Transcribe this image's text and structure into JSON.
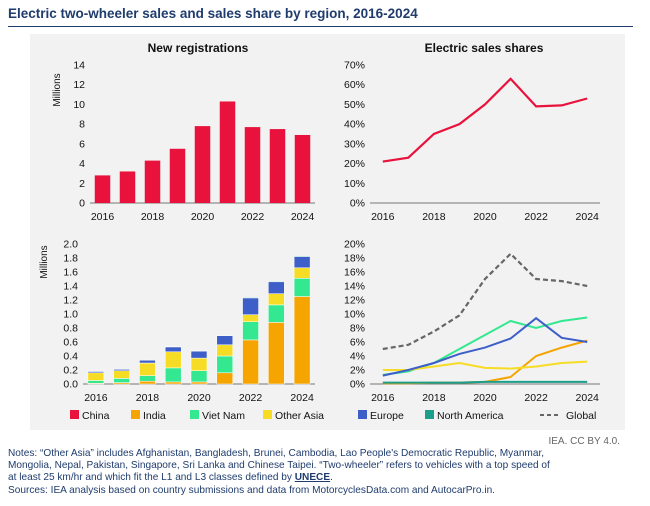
{
  "title": "Electric two-wheeler sales and sales share by region, 2016-2024",
  "colors": {
    "China": "#e8123c",
    "India": "#f5a400",
    "Viet Nam": "#33e890",
    "Other Asia": "#f7dc25",
    "Europe": "#3e5fc8",
    "North America": "#1b9e8a",
    "Global": "#666666"
  },
  "chart_data": [
    {
      "type": "bar",
      "title": "New registrations",
      "ylabel": "Millions",
      "ylim": [
        0,
        14
      ],
      "yticks": [
        0,
        2,
        4,
        6,
        8,
        10,
        12,
        14
      ],
      "x": [
        2016,
        2017,
        2018,
        2019,
        2020,
        2021,
        2022,
        2023,
        2024
      ],
      "xticks": [
        2016,
        2018,
        2020,
        2022,
        2024
      ],
      "series": [
        {
          "name": "China",
          "values": [
            2.8,
            3.2,
            4.3,
            5.5,
            7.8,
            10.3,
            7.7,
            7.5,
            6.9
          ]
        }
      ]
    },
    {
      "type": "line",
      "title": "Electric sales shares",
      "ylim": [
        0,
        70
      ],
      "yticks": [
        "0%",
        "10%",
        "20%",
        "30%",
        "40%",
        "50%",
        "60%",
        "70%"
      ],
      "x": [
        2016,
        2017,
        2018,
        2019,
        2020,
        2021,
        2022,
        2023,
        2024
      ],
      "xticks": [
        2016,
        2018,
        2020,
        2022,
        2024
      ],
      "series": [
        {
          "name": "China",
          "values": [
            21,
            23,
            35,
            40,
            50,
            63,
            49,
            49.5,
            53
          ]
        }
      ]
    },
    {
      "type": "bar",
      "stacked": true,
      "ylabel": "Millions",
      "ylim": [
        0,
        2.0
      ],
      "yticks": [
        "0.0",
        "0.2",
        "0.4",
        "0.6",
        "0.8",
        "1.0",
        "1.2",
        "1.4",
        "1.6",
        "1.8",
        "2.0"
      ],
      "x": [
        2016,
        2017,
        2018,
        2019,
        2020,
        2021,
        2022,
        2023,
        2024
      ],
      "xticks": [
        2016,
        2018,
        2020,
        2022,
        2024
      ],
      "series": [
        {
          "name": "India",
          "values": [
            0.01,
            0.02,
            0.04,
            0.03,
            0.03,
            0.16,
            0.63,
            0.88,
            1.25
          ]
        },
        {
          "name": "Viet Nam",
          "values": [
            0.04,
            0.06,
            0.08,
            0.2,
            0.16,
            0.24,
            0.26,
            0.25,
            0.26
          ]
        },
        {
          "name": "Other Asia",
          "values": [
            0.11,
            0.11,
            0.18,
            0.23,
            0.18,
            0.16,
            0.1,
            0.16,
            0.15
          ]
        },
        {
          "name": "Europe",
          "values": [
            0.02,
            0.02,
            0.04,
            0.07,
            0.1,
            0.13,
            0.24,
            0.17,
            0.16
          ]
        },
        {
          "name": "North America",
          "values": [
            0.005,
            0.005,
            0.005,
            0.005,
            0.005,
            0.005,
            0.01,
            0.01,
            0.01
          ]
        }
      ]
    },
    {
      "type": "line",
      "ylim": [
        0,
        20
      ],
      "yticks": [
        "0%",
        "2%",
        "4%",
        "6%",
        "8%",
        "10%",
        "12%",
        "14%",
        "16%",
        "18%",
        "20%"
      ],
      "x": [
        2016,
        2017,
        2018,
        2019,
        2020,
        2021,
        2022,
        2023,
        2024
      ],
      "xticks": [
        2016,
        2018,
        2020,
        2022,
        2024
      ],
      "series": [
        {
          "name": "India",
          "values": [
            0.1,
            0.1,
            0.2,
            0.2,
            0.3,
            1.0,
            4.0,
            5.2,
            6.2
          ]
        },
        {
          "name": "Viet Nam",
          "values": [
            1.3,
            1.8,
            3.0,
            5.0,
            7.0,
            9.0,
            8.0,
            9.0,
            9.5
          ]
        },
        {
          "name": "Other Asia",
          "values": [
            2.0,
            2.0,
            2.5,
            3.0,
            2.3,
            2.2,
            2.5,
            3.0,
            3.2
          ]
        },
        {
          "name": "Europe",
          "values": [
            1.2,
            2.0,
            3.0,
            4.3,
            5.2,
            6.5,
            9.4,
            6.6,
            6.0
          ]
        },
        {
          "name": "North America",
          "values": [
            0.2,
            0.2,
            0.2,
            0.2,
            0.3,
            0.3,
            0.3,
            0.3,
            0.3
          ]
        },
        {
          "name": "Global",
          "values": [
            5.0,
            5.6,
            7.5,
            9.8,
            15.0,
            18.6,
            15.0,
            14.7,
            14.0
          ],
          "dashed": true
        }
      ]
    }
  ],
  "legend": [
    "China",
    "India",
    "Viet Nam",
    "Other Asia",
    "Europe",
    "North America",
    "Global"
  ],
  "credit": "IEA. CC BY 4.0.",
  "notes": {
    "line1": "Notes: “Other Asia” includes Afghanistan, Bangladesh, Brunei, Cambodia, Lao People's Democratic Republic, Myanmar,",
    "line2": "Mongolia, Nepal, Pakistan, Singapore, Sri Lanka and Chinese Taipei. “Two-wheeler” refers to vehicles with a top speed of",
    "line3_prefix": "at least 25 km/hr and which fit the L1 and L3 classes defined by ",
    "line3_link": "UNECE",
    "line3_suffix": ".",
    "sources": "Sources: IEA analysis based on country submissions and data from MotorcyclesData.com and AutocarPro.in."
  }
}
